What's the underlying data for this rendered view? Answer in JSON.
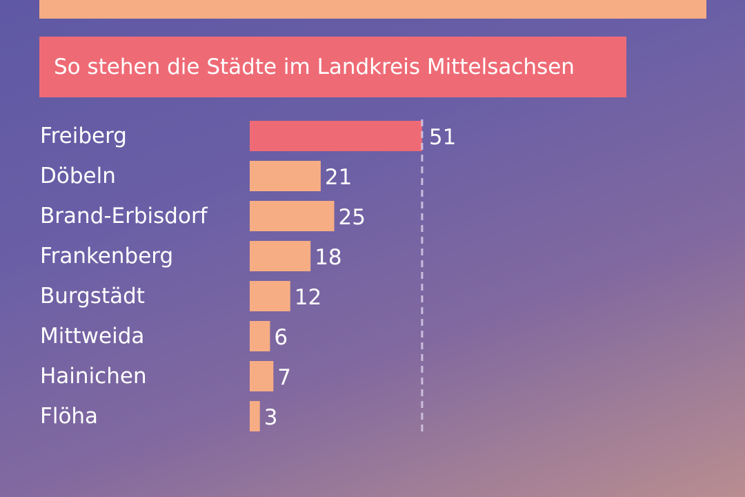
{
  "colors": {
    "top_bar": "#f7ad84",
    "title_bg": "#ee6b76",
    "highlight_bar": "#ee6b76",
    "bar": "#f7ad84",
    "text": "#ffffff",
    "reference_line": "#d8cde8"
  },
  "title": "So stehen die Städte im Landkreis Mittelsachsen",
  "chart_data": {
    "type": "bar",
    "orientation": "horizontal",
    "categories": [
      "Freiberg",
      "Döbeln",
      "Brand-Erbisdorf",
      "Frankenberg",
      "Burgstädt",
      "Mittweida",
      "Hainichen",
      "Flöha"
    ],
    "values": [
      51,
      21,
      25,
      18,
      12,
      6,
      7,
      3
    ],
    "highlight": "Freiberg",
    "reference_line": 51,
    "reference_line_style": "dashed",
    "title": "So stehen die Städte im Landkreis Mittelsachsen",
    "xlabel": "",
    "ylabel": "",
    "grid": false,
    "legend": "none"
  }
}
